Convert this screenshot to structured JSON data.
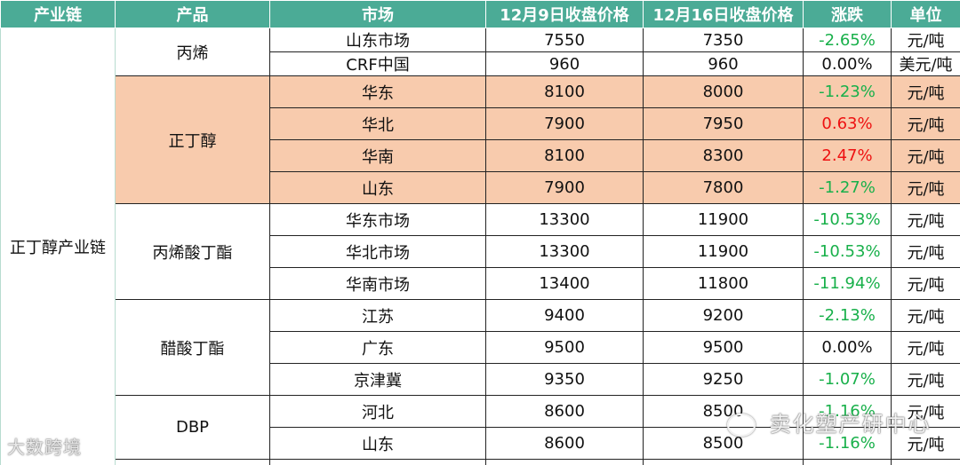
{
  "headers": [
    "产业链",
    "产品",
    "市场",
    "12月9日收盘价格",
    "12月16日收盘价格",
    "涨跌",
    "单位"
  ],
  "chain": "正丁醇产业链",
  "products": [
    "丙烯",
    "正丁醇",
    "丙烯酸丁酯",
    "醋酸丁酯",
    "DBP"
  ],
  "rows": [
    {
      "market": "山东市场",
      "p9": "7550",
      "p16": "7350",
      "chg": "-2.65%",
      "unit": "元/吨"
    },
    {
      "market": "CRF中国",
      "p9": "960",
      "p16": "960",
      "chg": "0.00%",
      "unit": "美元/吨"
    },
    {
      "market": "华东",
      "p9": "8100",
      "p16": "8000",
      "chg": "-1.23%",
      "unit": "元/吨"
    },
    {
      "market": "华北",
      "p9": "7900",
      "p16": "7950",
      "chg": "0.63%",
      "unit": "元/吨"
    },
    {
      "market": "华南",
      "p9": "8100",
      "p16": "8300",
      "chg": "2.47%",
      "unit": "元/吨"
    },
    {
      "market": "山东",
      "p9": "7900",
      "p16": "7800",
      "chg": "-1.27%",
      "unit": "元/吨"
    },
    {
      "market": "华东市场",
      "p9": "13300",
      "p16": "11900",
      "chg": "-10.53%",
      "unit": "元/吨"
    },
    {
      "market": "华北市场",
      "p9": "13300",
      "p16": "11900",
      "chg": "-10.53%",
      "unit": "元/吨"
    },
    {
      "market": "华南市场",
      "p9": "13400",
      "p16": "11800",
      "chg": "-11.94%",
      "unit": "元/吨"
    },
    {
      "market": "江苏",
      "p9": "9400",
      "p16": "9200",
      "chg": "-2.13%",
      "unit": "元/吨"
    },
    {
      "market": "广东",
      "p9": "9500",
      "p16": "9500",
      "chg": "0.00%",
      "unit": "元/吨"
    },
    {
      "market": "京津冀",
      "p9": "9350",
      "p16": "9250",
      "chg": "-1.07%",
      "unit": "元/吨"
    },
    {
      "market": "河北",
      "p9": "8600",
      "p16": "8500",
      "chg": "-1.16%",
      "unit": "元/吨"
    },
    {
      "market": "山东",
      "p9": "8600",
      "p16": "8500",
      "chg": "-1.16%",
      "unit": "元/吨"
    }
  ],
  "colors": {
    "header": "#4bab96",
    "highlight": "#f8cbad",
    "down": "#18b04a",
    "up": "#ee1111",
    "flat": "#111111"
  },
  "watermarks": {
    "left": "大数跨境",
    "right": "卖化塑产研中心"
  }
}
